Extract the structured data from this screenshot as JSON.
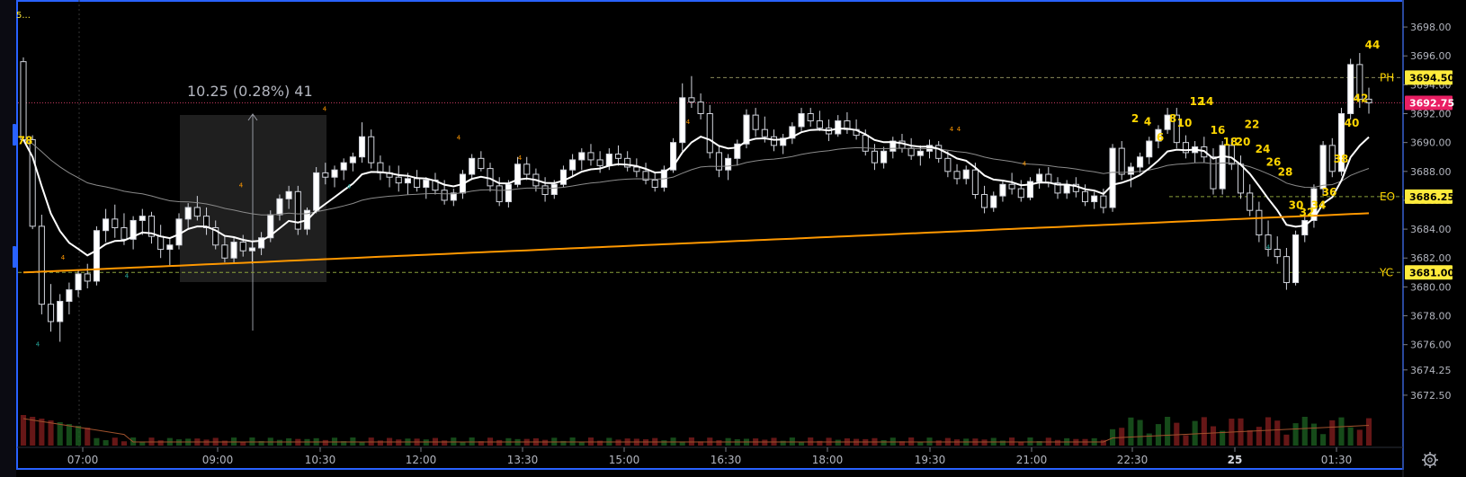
{
  "chart_data": {
    "type": "candlestick",
    "symbol_label": "5...",
    "measure_label": "10.25 (0.28%) 41",
    "x_axis_labels": [
      "07:00",
      "09:00",
      "10:30",
      "12:00",
      "13:30",
      "15:00",
      "16:30",
      "18:00",
      "19:30",
      "21:00",
      "22:30",
      "25",
      "01:30"
    ],
    "y_axis_labels": [
      "3698.00",
      "3696.00",
      "3694.00",
      "3692.00",
      "3690.00",
      "3688.00",
      "3686.00",
      "3684.00",
      "3682.00",
      "3680.00",
      "3678.00",
      "3676.00",
      "3674.25",
      "3672.50"
    ],
    "ylim": [
      3671.5,
      3699.0
    ],
    "price_tags": [
      {
        "value": 3694.5,
        "label": "3694.50",
        "color": "#ffeb3b",
        "text_color": "#000000",
        "line": "PH",
        "line_label": "PH"
      },
      {
        "value": 3692.75,
        "label": "3692.75",
        "color": "#e91e63",
        "text_color": "#ffffff",
        "line": "current",
        "line_label": ""
      },
      {
        "value": 3686.25,
        "label": "3686.25",
        "color": "#ffeb3b",
        "text_color": "#000000",
        "line": "EO",
        "line_label": "EO"
      },
      {
        "value": 3681.0,
        "label": "3681.00",
        "color": "#ffeb3b",
        "text_color": "#000000",
        "line": "YC",
        "line_label": "YC"
      }
    ],
    "count_labels": [
      "78",
      "2",
      "4",
      "6",
      "8",
      "10",
      "12",
      "14",
      "16",
      "18",
      "20",
      "22",
      "24",
      "26",
      "28",
      "30",
      "32",
      "34",
      "36",
      "38",
      "40",
      "42",
      "44"
    ],
    "series": [
      {
        "name": "",
        "style": "ema fast",
        "color": "#ffffff"
      },
      {
        "name": "",
        "style": "ema slow",
        "color": "#8a8a8a"
      },
      {
        "name": "",
        "style": "vwap",
        "color": "#ff9800"
      }
    ],
    "candles_note": "OHLC approximated from the figure",
    "candles": [
      [
        3695.6,
        3695.9,
        3690.1,
        3690.2
      ],
      [
        3690.2,
        3690.5,
        3684.0,
        3684.2
      ],
      [
        3684.2,
        3685.0,
        3678.1,
        3678.8
      ],
      [
        3678.8,
        3680.2,
        3676.9,
        3677.6
      ],
      [
        3677.6,
        3679.5,
        3676.2,
        3679.0
      ],
      [
        3679.0,
        3680.3,
        3678.1,
        3679.8
      ],
      [
        3679.8,
        3681.2,
        3679.3,
        3680.9
      ],
      [
        3680.9,
        3681.6,
        3679.9,
        3680.4
      ],
      [
        3680.4,
        3684.2,
        3680.1,
        3683.9
      ],
      [
        3683.9,
        3685.4,
        3683.1,
        3684.7
      ],
      [
        3684.7,
        3685.7,
        3683.4,
        3684.1
      ],
      [
        3684.1,
        3685.1,
        3682.9,
        3683.3
      ],
      [
        3683.3,
        3684.9,
        3682.6,
        3684.6
      ],
      [
        3684.6,
        3685.4,
        3683.6,
        3684.9
      ],
      [
        3684.9,
        3685.2,
        3683.0,
        3683.5
      ],
      [
        3683.5,
        3684.3,
        3682.0,
        3682.6
      ],
      [
        3682.6,
        3683.4,
        3681.5,
        3682.9
      ],
      [
        3682.9,
        3685.1,
        3682.6,
        3684.7
      ],
      [
        3684.7,
        3685.8,
        3684.0,
        3685.5
      ],
      [
        3685.5,
        3686.3,
        3684.6,
        3684.9
      ],
      [
        3684.9,
        3685.5,
        3683.6,
        3684.1
      ],
      [
        3684.1,
        3684.6,
        3682.6,
        3682.9
      ],
      [
        3682.9,
        3683.5,
        3681.7,
        3682.0
      ],
      [
        3682.0,
        3683.4,
        3681.7,
        3683.1
      ],
      [
        3683.1,
        3683.6,
        3682.1,
        3682.5
      ],
      [
        3682.5,
        3683.1,
        3681.6,
        3682.7
      ],
      [
        3682.7,
        3683.8,
        3682.2,
        3683.4
      ],
      [
        3683.4,
        3685.3,
        3683.1,
        3685.0
      ],
      [
        3685.0,
        3686.4,
        3684.6,
        3686.1
      ],
      [
        3686.1,
        3687.0,
        3685.4,
        3686.6
      ],
      [
        3686.6,
        3687.0,
        3683.6,
        3684.0
      ],
      [
        3684.0,
        3685.5,
        3683.6,
        3685.3
      ],
      [
        3685.3,
        3688.3,
        3685.1,
        3687.9
      ],
      [
        3687.9,
        3688.6,
        3687.1,
        3687.6
      ],
      [
        3687.6,
        3688.4,
        3686.9,
        3688.1
      ],
      [
        3688.1,
        3688.9,
        3687.4,
        3688.6
      ],
      [
        3688.6,
        3689.3,
        3688.0,
        3689.0
      ],
      [
        3689.0,
        3691.4,
        3688.6,
        3690.4
      ],
      [
        3690.4,
        3690.9,
        3688.2,
        3688.6
      ],
      [
        3688.6,
        3689.1,
        3687.4,
        3687.9
      ],
      [
        3687.9,
        3688.4,
        3686.9,
        3687.6
      ],
      [
        3687.6,
        3688.4,
        3686.6,
        3687.2
      ],
      [
        3687.2,
        3687.9,
        3686.4,
        3687.5
      ],
      [
        3687.5,
        3688.1,
        3686.6,
        3686.9
      ],
      [
        3686.9,
        3687.6,
        3686.1,
        3687.4
      ],
      [
        3687.4,
        3687.9,
        3686.4,
        3686.7
      ],
      [
        3686.7,
        3687.4,
        3685.7,
        3686.0
      ],
      [
        3686.0,
        3686.8,
        3685.6,
        3686.5
      ],
      [
        3686.5,
        3688.1,
        3686.1,
        3687.8
      ],
      [
        3687.8,
        3689.2,
        3687.4,
        3688.9
      ],
      [
        3688.9,
        3689.4,
        3688.0,
        3688.2
      ],
      [
        3688.2,
        3688.6,
        3686.6,
        3687.0
      ],
      [
        3687.0,
        3687.6,
        3685.6,
        3685.9
      ],
      [
        3685.9,
        3687.4,
        3685.5,
        3687.1
      ],
      [
        3687.1,
        3689.0,
        3686.9,
        3688.5
      ],
      [
        3688.5,
        3689.0,
        3687.4,
        3687.8
      ],
      [
        3687.8,
        3688.2,
        3686.6,
        3687.0
      ],
      [
        3687.0,
        3687.6,
        3685.9,
        3686.4
      ],
      [
        3686.4,
        3687.4,
        3686.1,
        3687.1
      ],
      [
        3687.1,
        3688.4,
        3686.9,
        3688.1
      ],
      [
        3688.1,
        3689.2,
        3687.6,
        3688.8
      ],
      [
        3688.8,
        3689.6,
        3688.1,
        3689.3
      ],
      [
        3689.3,
        3689.9,
        3688.4,
        3688.8
      ],
      [
        3688.8,
        3689.4,
        3687.9,
        3688.4
      ],
      [
        3688.4,
        3689.6,
        3688.1,
        3689.2
      ],
      [
        3689.2,
        3689.8,
        3688.4,
        3688.9
      ],
      [
        3688.9,
        3689.4,
        3688.0,
        3688.3
      ],
      [
        3688.3,
        3688.9,
        3687.6,
        3688.0
      ],
      [
        3688.0,
        3688.6,
        3687.1,
        3687.4
      ],
      [
        3687.4,
        3687.9,
        3686.6,
        3686.9
      ],
      [
        3686.9,
        3688.4,
        3686.6,
        3688.1
      ],
      [
        3688.1,
        3690.3,
        3687.9,
        3690.0
      ],
      [
        3690.0,
        3694.1,
        3689.4,
        3693.1
      ],
      [
        3693.1,
        3694.6,
        3692.4,
        3692.8
      ],
      [
        3692.8,
        3693.4,
        3691.6,
        3692.0
      ],
      [
        3692.0,
        3692.6,
        3688.9,
        3689.3
      ],
      [
        3689.3,
        3689.8,
        3687.6,
        3688.1
      ],
      [
        3688.1,
        3689.2,
        3687.4,
        3688.9
      ],
      [
        3688.9,
        3690.2,
        3688.4,
        3689.9
      ],
      [
        3689.9,
        3692.3,
        3689.6,
        3691.9
      ],
      [
        3691.9,
        3692.4,
        3690.4,
        3690.9
      ],
      [
        3690.9,
        3691.8,
        3690.0,
        3690.4
      ],
      [
        3690.4,
        3690.9,
        3689.4,
        3689.8
      ],
      [
        3689.8,
        3690.6,
        3689.2,
        3690.3
      ],
      [
        3690.3,
        3691.4,
        3689.9,
        3691.1
      ],
      [
        3691.1,
        3692.4,
        3690.8,
        3692.0
      ],
      [
        3692.0,
        3692.4,
        3691.1,
        3691.5
      ],
      [
        3691.5,
        3692.2,
        3690.8,
        3691.0
      ],
      [
        3691.0,
        3691.6,
        3690.1,
        3690.6
      ],
      [
        3690.6,
        3691.9,
        3690.4,
        3691.5
      ],
      [
        3691.5,
        3692.1,
        3690.6,
        3690.9
      ],
      [
        3690.9,
        3691.6,
        3690.2,
        3690.5
      ],
      [
        3690.5,
        3690.9,
        3689.1,
        3689.4
      ],
      [
        3689.4,
        3689.9,
        3688.1,
        3688.6
      ],
      [
        3688.6,
        3689.7,
        3688.2,
        3689.4
      ],
      [
        3689.4,
        3690.4,
        3688.9,
        3690.1
      ],
      [
        3690.1,
        3690.6,
        3689.3,
        3689.6
      ],
      [
        3689.6,
        3690.3,
        3688.8,
        3689.1
      ],
      [
        3689.1,
        3689.8,
        3688.4,
        3689.4
      ],
      [
        3689.4,
        3690.2,
        3688.9,
        3689.8
      ],
      [
        3689.8,
        3690.1,
        3688.6,
        3688.9
      ],
      [
        3688.9,
        3689.4,
        3687.6,
        3688.0
      ],
      [
        3688.0,
        3688.5,
        3687.1,
        3687.5
      ],
      [
        3687.5,
        3688.4,
        3687.1,
        3688.1
      ],
      [
        3688.1,
        3688.6,
        3686.1,
        3686.4
      ],
      [
        3686.4,
        3687.0,
        3685.1,
        3685.5
      ],
      [
        3685.5,
        3686.6,
        3685.2,
        3686.3
      ],
      [
        3686.3,
        3687.4,
        3685.9,
        3687.1
      ],
      [
        3687.1,
        3687.9,
        3686.4,
        3686.8
      ],
      [
        3686.8,
        3687.4,
        3685.9,
        3686.2
      ],
      [
        3686.2,
        3687.6,
        3686.0,
        3687.3
      ],
      [
        3687.3,
        3688.2,
        3686.8,
        3687.8
      ],
      [
        3687.8,
        3688.3,
        3686.9,
        3687.2
      ],
      [
        3687.2,
        3687.6,
        3686.1,
        3686.5
      ],
      [
        3686.5,
        3687.4,
        3686.1,
        3687.1
      ],
      [
        3687.1,
        3687.6,
        3686.2,
        3686.6
      ],
      [
        3686.6,
        3687.1,
        3685.6,
        3685.9
      ],
      [
        3685.9,
        3686.6,
        3685.4,
        3686.3
      ],
      [
        3686.3,
        3686.8,
        3685.1,
        3685.5
      ],
      [
        3685.5,
        3689.9,
        3685.2,
        3689.6
      ],
      [
        3689.6,
        3690.1,
        3687.4,
        3687.8
      ],
      [
        3687.8,
        3688.6,
        3686.9,
        3688.3
      ],
      [
        3688.3,
        3689.3,
        3687.9,
        3689.0
      ],
      [
        3689.0,
        3690.4,
        3688.5,
        3690.1
      ],
      [
        3690.1,
        3691.2,
        3689.6,
        3690.9
      ],
      [
        3690.9,
        3692.4,
        3690.6,
        3691.9
      ],
      [
        3691.9,
        3692.4,
        3689.6,
        3690.0
      ],
      [
        3690.0,
        3690.5,
        3688.9,
        3689.3
      ],
      [
        3689.3,
        3690.1,
        3688.6,
        3689.7
      ],
      [
        3689.7,
        3690.4,
        3688.6,
        3689.0
      ],
      [
        3689.0,
        3689.6,
        3686.4,
        3686.8
      ],
      [
        3686.8,
        3690.1,
        3686.4,
        3689.8
      ],
      [
        3689.8,
        3690.3,
        3688.1,
        3688.5
      ],
      [
        3688.5,
        3689.1,
        3686.1,
        3686.5
      ],
      [
        3686.5,
        3687.1,
        3684.9,
        3685.3
      ],
      [
        3685.3,
        3685.9,
        3683.1,
        3683.6
      ],
      [
        3683.6,
        3684.6,
        3682.1,
        3682.6
      ],
      [
        3682.6,
        3683.5,
        3681.6,
        3682.1
      ],
      [
        3682.1,
        3682.7,
        3679.8,
        3680.3
      ],
      [
        3680.3,
        3683.9,
        3680.1,
        3683.6
      ],
      [
        3683.6,
        3685.1,
        3683.1,
        3684.6
      ],
      [
        3684.6,
        3687.1,
        3684.1,
        3686.8
      ],
      [
        3686.8,
        3690.1,
        3686.4,
        3689.8
      ],
      [
        3689.8,
        3690.3,
        3687.6,
        3688.0
      ],
      [
        3688.0,
        3692.4,
        3687.7,
        3692.0
      ],
      [
        3692.0,
        3695.8,
        3691.6,
        3695.4
      ],
      [
        3695.4,
        3696.2,
        3692.4,
        3693.0
      ],
      [
        3693.0,
        3693.8,
        3692.0,
        3692.75
      ]
    ]
  }
}
